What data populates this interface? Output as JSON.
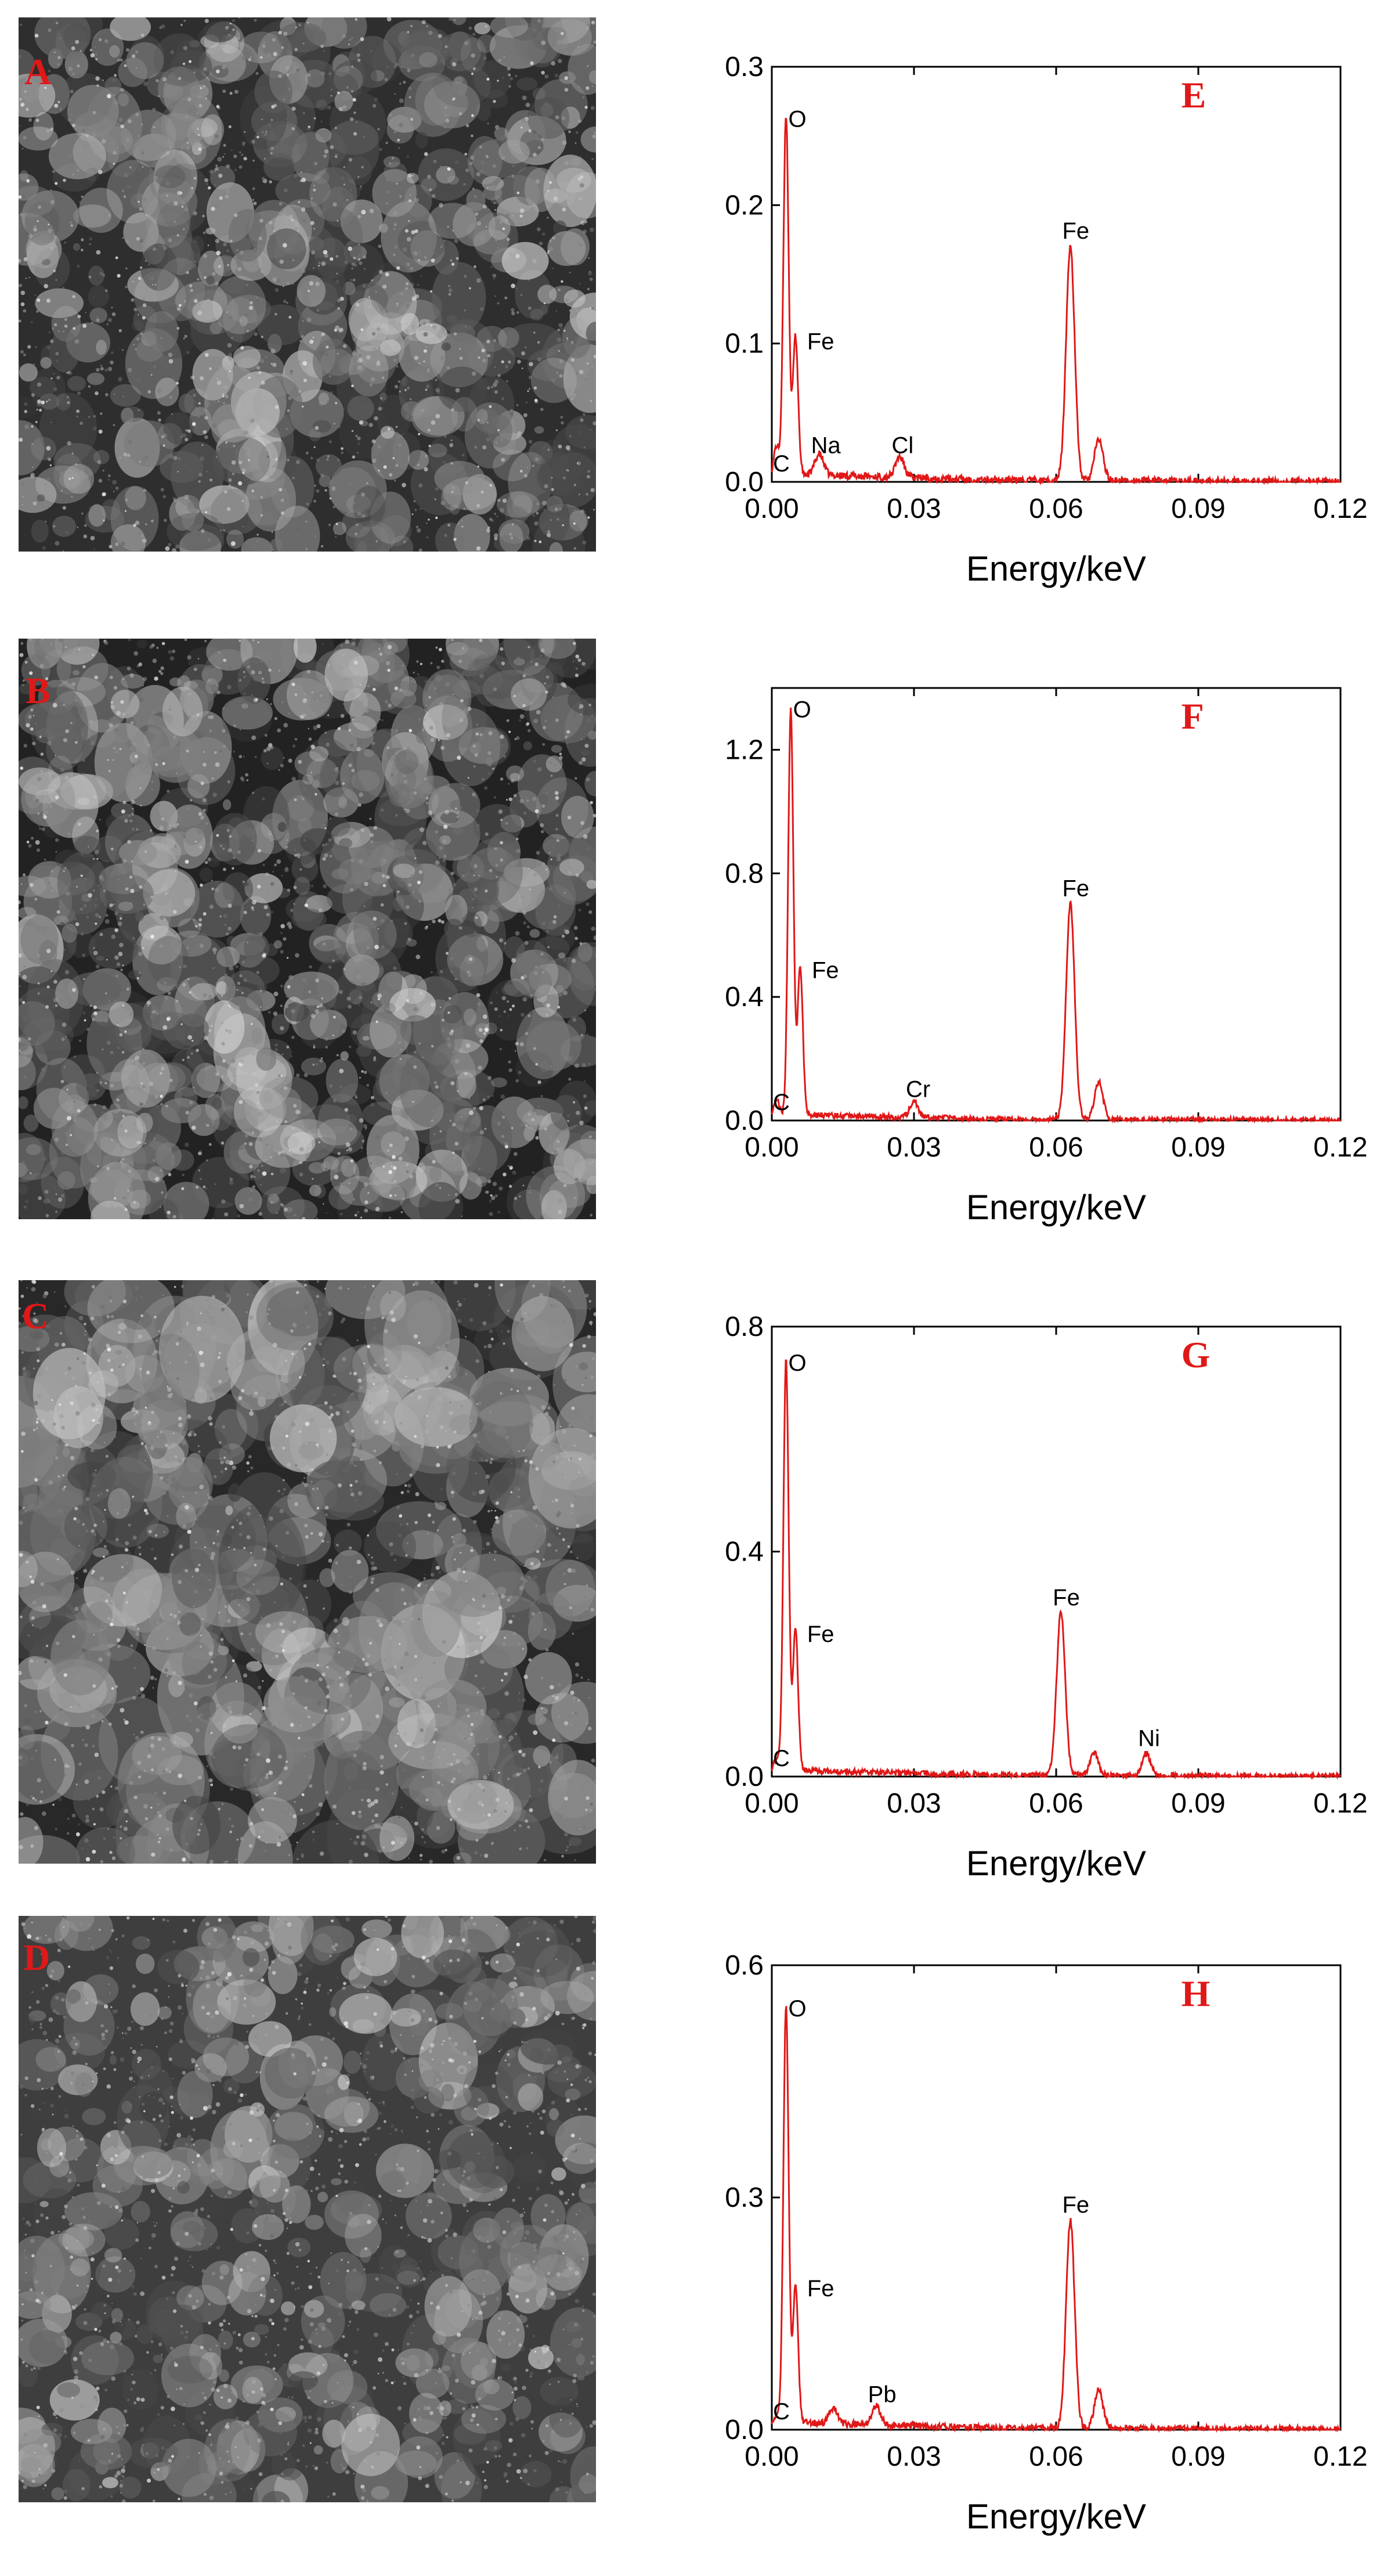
{
  "images": [
    {
      "letter": "A",
      "footer": "",
      "scale": ""
    },
    {
      "letter": "B",
      "footer": "",
      "scale": ""
    },
    {
      "letter": "C",
      "footer": "",
      "scale": ""
    },
    {
      "letter": "D",
      "footer": "",
      "scale": ""
    }
  ],
  "colors": {
    "line": "#e01818",
    "label": "#e01818",
    "axis": "#000000"
  },
  "chart_data": [
    {
      "type": "line",
      "panel": "E",
      "xlabel": "Energy/keV",
      "xlim": [
        0,
        0.12
      ],
      "ylim": [
        0,
        0.3
      ],
      "xticks": [
        "0.00",
        "0.03",
        "0.06",
        "0.09",
        "0.12"
      ],
      "yticks": [
        "0.0",
        "0.1",
        "0.2",
        "0.3"
      ],
      "baseline": 0.006,
      "peaks": [
        {
          "element": "C",
          "x": 0.001,
          "y": 0.02
        },
        {
          "element": "O",
          "x": 0.003,
          "y": 0.26
        },
        {
          "element": "Fe",
          "x": 0.005,
          "y": 0.1
        },
        {
          "element": "Na",
          "x": 0.01,
          "y": 0.015
        },
        {
          "element": "Cl",
          "x": 0.027,
          "y": 0.015
        },
        {
          "element": "Fe",
          "x": 0.063,
          "y": 0.17
        },
        {
          "element": "",
          "x": 0.069,
          "y": 0.03
        }
      ]
    },
    {
      "type": "line",
      "panel": "F",
      "xlabel": "Energy/keV",
      "xlim": [
        0,
        0.12
      ],
      "ylim": [
        0,
        1.4
      ],
      "xticks": [
        "0.00",
        "0.03",
        "0.06",
        "0.09",
        "0.12"
      ],
      "yticks": [
        "0.0",
        "0.4",
        "0.8",
        "1.2"
      ],
      "baseline": 0.02,
      "peaks": [
        {
          "element": "C",
          "x": 0.001,
          "y": 0.05
        },
        {
          "element": "O",
          "x": 0.004,
          "y": 1.32
        },
        {
          "element": "Fe",
          "x": 0.006,
          "y": 0.48
        },
        {
          "element": "Cr",
          "x": 0.03,
          "y": 0.05
        },
        {
          "element": "Fe",
          "x": 0.063,
          "y": 0.7
        },
        {
          "element": "",
          "x": 0.069,
          "y": 0.12
        }
      ]
    },
    {
      "type": "line",
      "panel": "G",
      "xlabel": "Energy/keV",
      "xlim": [
        0,
        0.12
      ],
      "ylim": [
        0,
        0.8
      ],
      "xticks": [
        "0.00",
        "0.03",
        "0.06",
        "0.09",
        "0.12"
      ],
      "yticks": [
        "0.0",
        "0.4",
        "0.8"
      ],
      "baseline": 0.012,
      "peaks": [
        {
          "element": "C",
          "x": 0.001,
          "y": 0.02
        },
        {
          "element": "O",
          "x": 0.003,
          "y": 0.73
        },
        {
          "element": "Fe",
          "x": 0.005,
          "y": 0.25
        },
        {
          "element": "Fe",
          "x": 0.061,
          "y": 0.29
        },
        {
          "element": "",
          "x": 0.068,
          "y": 0.04
        },
        {
          "element": "Ni",
          "x": 0.079,
          "y": 0.04
        }
      ]
    },
    {
      "type": "line",
      "panel": "H",
      "xlabel": "Energy/keV",
      "xlim": [
        0,
        0.12
      ],
      "ylim": [
        0,
        0.6
      ],
      "xticks": [
        "0.00",
        "0.03",
        "0.06",
        "0.09",
        "0.12"
      ],
      "yticks": [
        "0.0",
        "0.3",
        "0.6"
      ],
      "baseline": 0.01,
      "peaks": [
        {
          "element": "C",
          "x": 0.001,
          "y": 0.01
        },
        {
          "element": "O",
          "x": 0.003,
          "y": 0.54
        },
        {
          "element": "Fe",
          "x": 0.005,
          "y": 0.18
        },
        {
          "element": "",
          "x": 0.013,
          "y": 0.02
        },
        {
          "element": "Pb",
          "x": 0.022,
          "y": 0.025
        },
        {
          "element": "Fe",
          "x": 0.063,
          "y": 0.27
        },
        {
          "element": "",
          "x": 0.069,
          "y": 0.05
        }
      ]
    }
  ]
}
